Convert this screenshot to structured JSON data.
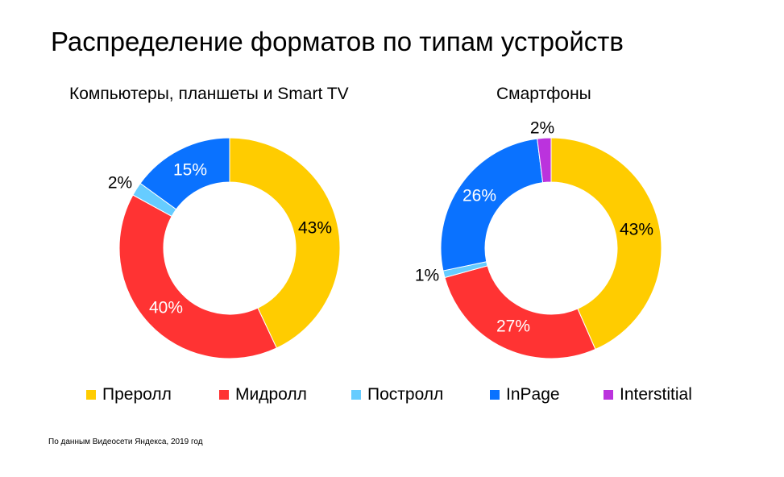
{
  "page": {
    "title": "Распределение форматов по типам устройств",
    "source": "По данным Видеосети Яндекса, 2019 год"
  },
  "colors": {
    "preroll": "#FFCC00",
    "midroll": "#FF3333",
    "postroll": "#66CCFF",
    "inpage": "#0A72FF",
    "interstitial": "#BB33DD"
  },
  "legend": [
    {
      "label": "Преролл",
      "color": "#FFCC00"
    },
    {
      "label": "Мидролл",
      "color": "#FF3333"
    },
    {
      "label": "Постролл",
      "color": "#66CCFF"
    },
    {
      "label": "InPage",
      "color": "#0A72FF"
    },
    {
      "label": "Interstitial",
      "color": "#BB33DD"
    }
  ],
  "chart_data": [
    {
      "type": "pie",
      "variant": "donut",
      "title": "Компьютеры, планшеты и Smart TV",
      "slices": [
        {
          "name": "Преролл",
          "value": 43,
          "label": "43%",
          "color": "#FFCC00"
        },
        {
          "name": "Мидролл",
          "value": 40,
          "label": "40%",
          "color": "#FF3333"
        },
        {
          "name": "Постролл",
          "value": 2,
          "label": "2%",
          "color": "#66CCFF"
        },
        {
          "name": "InPage",
          "value": 15,
          "label": "15%",
          "color": "#0A72FF"
        }
      ]
    },
    {
      "type": "pie",
      "variant": "donut",
      "title": "Смартфоны",
      "slices": [
        {
          "name": "Преролл",
          "value": 43,
          "label": "43%",
          "color": "#FFCC00"
        },
        {
          "name": "Мидролл",
          "value": 27,
          "label": "27%",
          "color": "#FF3333"
        },
        {
          "name": "Постролл",
          "value": 1,
          "label": "1%",
          "color": "#66CCFF"
        },
        {
          "name": "InPage",
          "value": 26,
          "label": "26%",
          "color": "#0A72FF"
        },
        {
          "name": "Interstitial",
          "value": 2,
          "label": "2%",
          "color": "#BB33DD"
        }
      ]
    }
  ]
}
